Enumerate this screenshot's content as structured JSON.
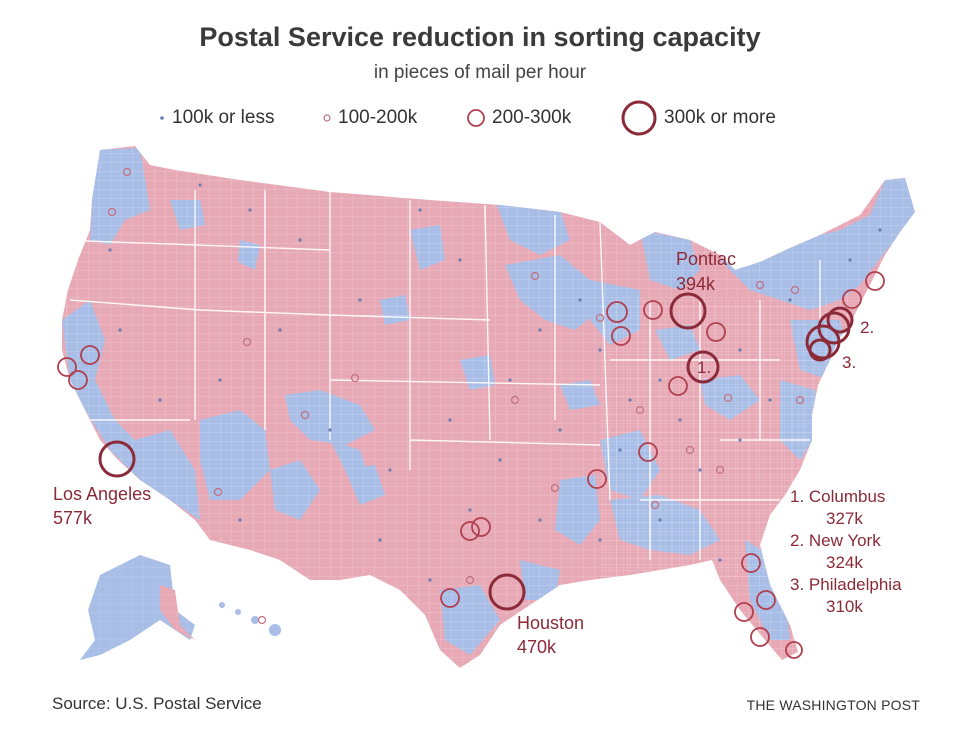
{
  "title": "Postal Service reduction in sorting capacity",
  "subtitle": "in pieces of mail per hour",
  "legend": [
    {
      "label": "100k or less",
      "size": "xs"
    },
    {
      "label": "100-200k",
      "size": "s"
    },
    {
      "label": "200-300k",
      "size": "m"
    },
    {
      "label": "300k or more",
      "size": "l"
    }
  ],
  "colors": {
    "red_county": "#e8a9b6",
    "blue_county": "#a9bee6",
    "circle": "#8b2a38",
    "small_dot": "#6b7db0"
  },
  "callouts": {
    "los_angeles": {
      "name": "Los Angeles",
      "value": "577k"
    },
    "houston": {
      "name": "Houston",
      "value": "470k"
    },
    "pontiac": {
      "name": "Pontiac",
      "value": "394k"
    },
    "marker_1": "1.",
    "marker_2": "2.",
    "marker_3": "3."
  },
  "footnotes": [
    {
      "label": "1. Columbus",
      "value": "327k"
    },
    {
      "label": "2. New York",
      "value": "324k"
    },
    {
      "label": "3. Philadelphia",
      "value": "310k"
    }
  ],
  "source": "Source: U.S. Postal Service",
  "credit": "THE WASHINGTON POST"
}
